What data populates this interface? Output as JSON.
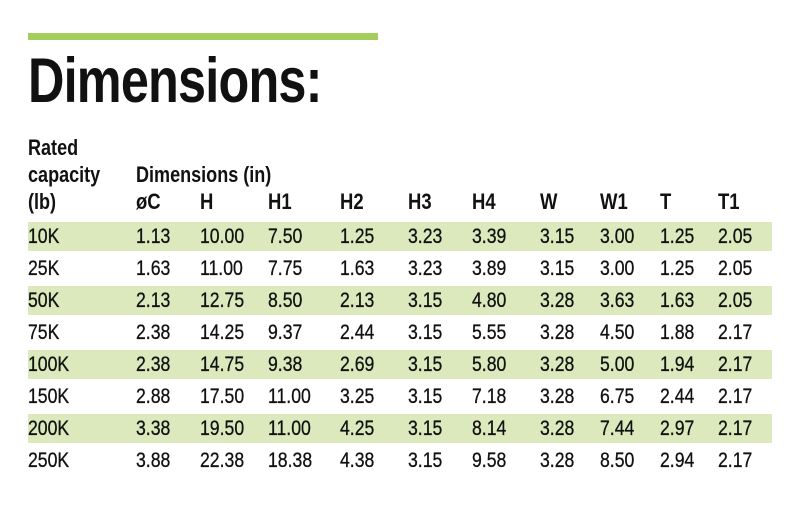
{
  "colors": {
    "accent_green": "#a5cd5c",
    "row_highlight_green": "#dce9bd",
    "text": "#111111",
    "background": "#ffffff"
  },
  "title": "Dimensions:",
  "table": {
    "corner_header_lines": [
      "Rated",
      "capacity",
      "(lb)"
    ],
    "group_header": "Dimensions (in)",
    "columns": [
      "øC",
      "H",
      "H1",
      "H2",
      "H3",
      "H4",
      "W",
      "W1",
      "T",
      "T1"
    ],
    "rows": [
      {
        "capacity": "10K",
        "highlight": true,
        "values": [
          "1.13",
          "10.00",
          "7.50",
          "1.25",
          "3.23",
          "3.39",
          "3.15",
          "3.00",
          "1.25",
          "2.05"
        ]
      },
      {
        "capacity": "25K",
        "highlight": false,
        "values": [
          "1.63",
          "11.00",
          "7.75",
          "1.63",
          "3.23",
          "3.89",
          "3.15",
          "3.00",
          "1.25",
          "2.05"
        ]
      },
      {
        "capacity": "50K",
        "highlight": true,
        "values": [
          "2.13",
          "12.75",
          "8.50",
          "2.13",
          "3.15",
          "4.80",
          "3.28",
          "3.63",
          "1.63",
          "2.05"
        ]
      },
      {
        "capacity": "75K",
        "highlight": false,
        "values": [
          "2.38",
          "14.25",
          "9.37",
          "2.44",
          "3.15",
          "5.55",
          "3.28",
          "4.50",
          "1.88",
          "2.17"
        ]
      },
      {
        "capacity": "100K",
        "highlight": true,
        "values": [
          "2.38",
          "14.75",
          "9.38",
          "2.69",
          "3.15",
          "5.80",
          "3.28",
          "5.00",
          "1.94",
          "2.17"
        ]
      },
      {
        "capacity": "150K",
        "highlight": false,
        "values": [
          "2.88",
          "17.50",
          "11.00",
          "3.25",
          "3.15",
          "7.18",
          "3.28",
          "6.75",
          "2.44",
          "2.17"
        ]
      },
      {
        "capacity": "200K",
        "highlight": true,
        "values": [
          "3.38",
          "19.50",
          "11.00",
          "4.25",
          "3.15",
          "8.14",
          "3.28",
          "7.44",
          "2.97",
          "2.17"
        ]
      },
      {
        "capacity": "250K",
        "highlight": false,
        "values": [
          "3.88",
          "22.38",
          "18.38",
          "4.38",
          "3.15",
          "9.58",
          "3.28",
          "8.50",
          "2.94",
          "2.17"
        ]
      }
    ]
  }
}
